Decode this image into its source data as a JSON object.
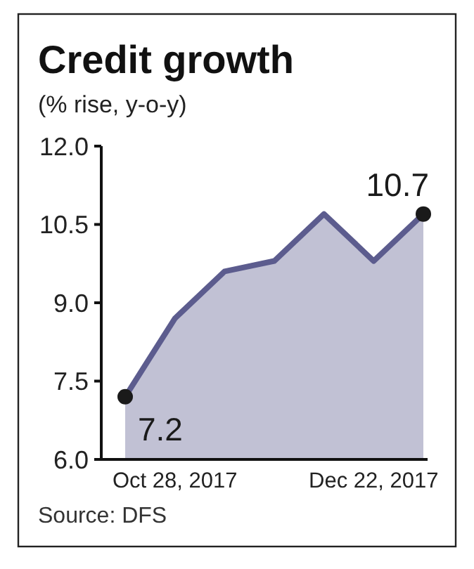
{
  "chart_data": {
    "type": "area",
    "title": "Credit growth",
    "subtitle": "(% rise, y-o-y)",
    "categories": [
      null,
      "Oct 28, 2017",
      null,
      null,
      null,
      "Dec 22, 2017",
      null
    ],
    "values": [
      7.2,
      8.7,
      9.6,
      9.8,
      10.7,
      9.8,
      10.7
    ],
    "value_labels": [
      "7.2",
      null,
      null,
      null,
      null,
      null,
      "10.7"
    ],
    "color": "#5c5c8e",
    "ylim": [
      6.0,
      12.0
    ],
    "yticks": [
      {
        "value": 6,
        "label": "6.0"
      },
      {
        "value": 7.5,
        "label": "7.5"
      },
      {
        "value": 9,
        "label": "9.0"
      },
      {
        "value": 10.5,
        "label": "10.5"
      },
      {
        "value": 12,
        "label": "12.0"
      }
    ],
    "grid": false,
    "annotations": [
      "Source: DFS"
    ]
  }
}
